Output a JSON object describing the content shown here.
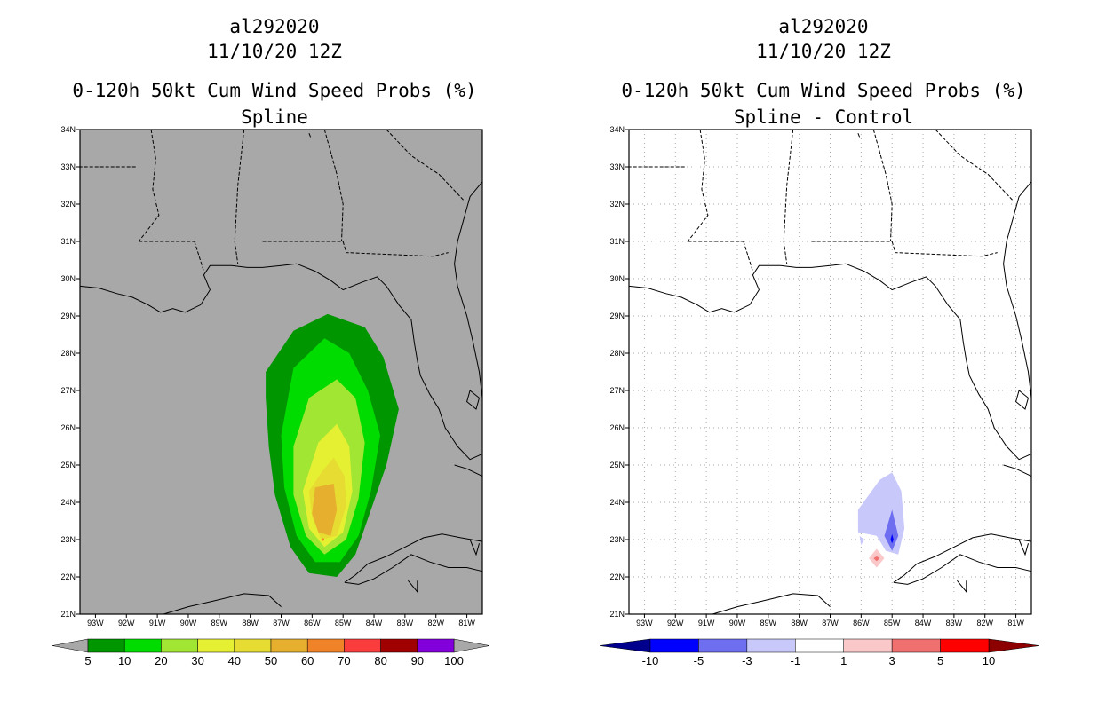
{
  "left": {
    "storm_id": "al292020",
    "datetime": "11/10/20 12Z",
    "product": "0-120h 50kt Cum Wind Speed Probs (%)",
    "subtitle": "Spline",
    "background": "#a8a8a8",
    "colorbar": {
      "labels": [
        "5",
        "10",
        "20",
        "30",
        "40",
        "50",
        "60",
        "70",
        "80",
        "90",
        "100"
      ],
      "colors": [
        "#009600",
        "#00dc00",
        "#a0e632",
        "#e6f032",
        "#e6dc32",
        "#e6af2d",
        "#f08228",
        "#fa3c3c",
        "#a00000",
        "#8200dc"
      ],
      "under_color": "#a8a8a8",
      "over_color": "#a8a8a8"
    }
  },
  "right": {
    "storm_id": "al292020",
    "datetime": "11/10/20 12Z",
    "product": "0-120h 50kt Cum Wind Speed Probs (%)",
    "subtitle": "Spline - Control",
    "background": "#ffffff",
    "colorbar": {
      "labels": [
        "-10",
        "-5",
        "-3",
        "-1",
        "1",
        "3",
        "5",
        "10"
      ],
      "colors": [
        "#0000ff",
        "#6e6ef0",
        "#c8c8fa",
        "#ffffff",
        "#fac8c8",
        "#f07070",
        "#ff0000"
      ],
      "under_color": "#00008c",
      "over_color": "#8c0000"
    }
  },
  "axes": {
    "lat_labels": [
      "34N",
      "33N",
      "32N",
      "31N",
      "30N",
      "29N",
      "28N",
      "27N",
      "26N",
      "25N",
      "24N",
      "23N",
      "22N",
      "21N"
    ],
    "lon_labels": [
      "93W",
      "92W",
      "91W",
      "90W",
      "89W",
      "88W",
      "87W",
      "86W",
      "85W",
      "84W",
      "83W",
      "82W",
      "81W"
    ]
  }
}
